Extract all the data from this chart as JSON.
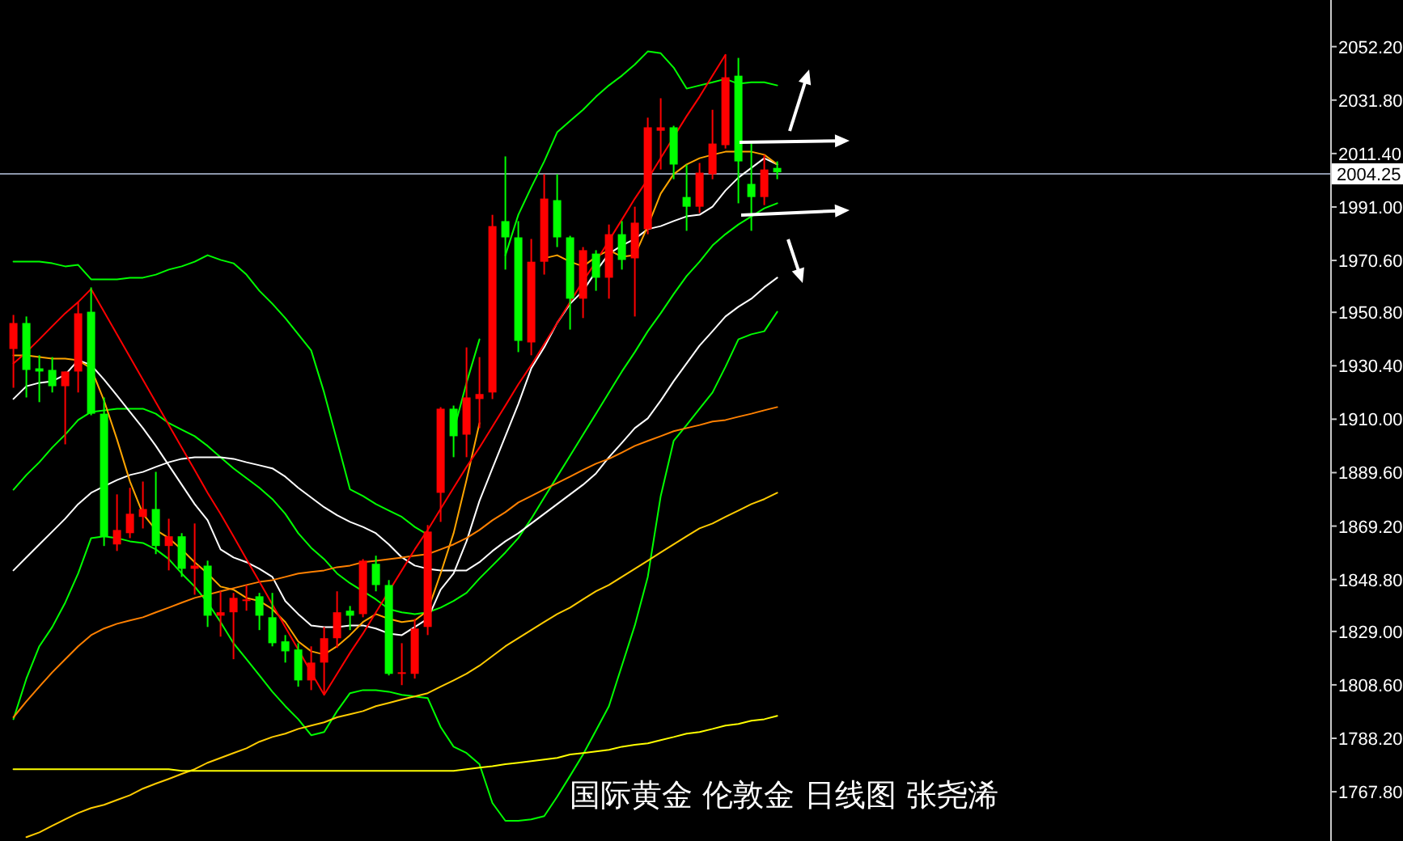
{
  "chart_data": {
    "type": "candlestick",
    "categories": [
      null,
      null,
      null,
      null,
      null,
      null,
      null,
      null,
      null,
      null,
      null,
      null,
      null,
      null,
      null,
      null,
      null,
      null,
      null,
      null,
      null,
      null,
      null,
      null,
      null,
      null,
      null,
      null,
      null,
      null,
      null,
      null,
      null,
      null,
      null,
      null,
      null,
      null,
      null,
      null,
      null,
      null,
      null,
      null,
      null,
      null,
      null,
      null,
      null,
      null,
      null,
      null,
      null,
      null,
      null,
      null,
      null,
      null,
      null,
      null
    ],
    "ohlc": [
      [
        1936.8,
        1949.8,
        1922.0,
        1946.7
      ],
      [
        1946.7,
        1949.2,
        1918.3,
        1928.8
      ],
      [
        1929.4,
        1934.4,
        1916.5,
        1928.2
      ],
      [
        1928.8,
        1933.7,
        1920.2,
        1922.6
      ],
      [
        1922.6,
        1928.2,
        1900.4,
        1928.2
      ],
      [
        1928.2,
        1954.7,
        1920.2,
        1950.4
      ],
      [
        1951.0,
        1960.3,
        1911.5,
        1912.1
      ],
      [
        1912.1,
        1918.3,
        1861.6,
        1865.3
      ],
      [
        1862.2,
        1881.3,
        1859.7,
        1867.7
      ],
      [
        1866.5,
        1883.8,
        1864.6,
        1873.9
      ],
      [
        1872.7,
        1886.2,
        1868.3,
        1875.7
      ],
      [
        1875.7,
        1889.9,
        1858.5,
        1861.6
      ],
      [
        1861.6,
        1872.0,
        1852.3,
        1865.3
      ],
      [
        1865.3,
        1866.5,
        1849.8,
        1852.9
      ],
      [
        1852.9,
        1870.2,
        1843.0,
        1854.1
      ],
      [
        1854.1,
        1856.0,
        1830.7,
        1835.0
      ],
      [
        1835.0,
        1844.3,
        1827.0,
        1836.3
      ],
      [
        1836.3,
        1843.7,
        1818.4,
        1841.8
      ],
      [
        1840.6,
        1846.7,
        1836.9,
        1841.2
      ],
      [
        1842.4,
        1843.7,
        1829.5,
        1835.0
      ],
      [
        1834.4,
        1843.7,
        1823.3,
        1824.5
      ],
      [
        1825.2,
        1827.6,
        1817.1,
        1821.4
      ],
      [
        1822.1,
        1824.5,
        1807.9,
        1810.3
      ],
      [
        1810.3,
        1823.3,
        1806.6,
        1817.1
      ],
      [
        1817.1,
        1830.7,
        1804.8,
        1826.4
      ],
      [
        1826.4,
        1844.3,
        1822.7,
        1836.3
      ],
      [
        1836.9,
        1838.7,
        1829.5,
        1835.0
      ],
      [
        1835.6,
        1856.6,
        1834.4,
        1856.0
      ],
      [
        1854.8,
        1857.9,
        1844.3,
        1846.7
      ],
      [
        1846.7,
        1848.6,
        1812.2,
        1812.8
      ],
      [
        1812.8,
        1824.5,
        1808.5,
        1813.4
      ],
      [
        1812.8,
        1833.8,
        1811.0,
        1830.1
      ],
      [
        1830.7,
        1869.6,
        1827.6,
        1867.1
      ],
      [
        1881.9,
        1914.6,
        1870.8,
        1914.0
      ],
      [
        1914.0,
        1915.2,
        1895.5,
        1903.5
      ],
      [
        1904.1,
        1937.4,
        1895.5,
        1918.3
      ],
      [
        1917.7,
        1933.7,
        1906.6,
        1919.6
      ],
      [
        1920.2,
        1988.0,
        1917.7,
        1983.7
      ],
      [
        1985.6,
        2010.3,
        1967.1,
        1979.4
      ],
      [
        1979.4,
        1985.6,
        1935.6,
        1939.9
      ],
      [
        1939.3,
        1978.8,
        1934.4,
        1970.1
      ],
      [
        1970.1,
        2003.5,
        1965.2,
        1994.2
      ],
      [
        1993.6,
        2003.5,
        1975.7,
        1979.4
      ],
      [
        1979.4,
        1980.0,
        1944.2,
        1956.0
      ],
      [
        1956.0,
        1975.7,
        1948.6,
        1974.5
      ],
      [
        1973.2,
        1974.5,
        1959.0,
        1964.0
      ],
      [
        1964.0,
        1984.3,
        1956.0,
        1980.6
      ],
      [
        1980.6,
        1985.6,
        1967.1,
        1970.8
      ],
      [
        1971.4,
        1991.1,
        1949.2,
        1985.0
      ],
      [
        1982.5,
        2025.1,
        1980.6,
        2021.4
      ],
      [
        2020.1,
        2032.5,
        2005.3,
        2021.4
      ],
      [
        2021.4,
        2022.0,
        2001.6,
        2007.2
      ],
      [
        1994.8,
        2007.2,
        1981.9,
        1991.1
      ],
      [
        1991.1,
        2007.8,
        1988.7,
        2004.1
      ],
      [
        2003.5,
        2028.1,
        2001.6,
        2015.2
      ],
      [
        2014.6,
        2049.1,
        2013.3,
        2040.5
      ],
      [
        2041.1,
        2047.9,
        1992.4,
        2008.4
      ],
      [
        1999.8,
        2015.2,
        1981.9,
        1994.8
      ],
      [
        1994.8,
        2010.9,
        1991.7,
        2005.3
      ],
      [
        2005.9,
        2008.4,
        2001.6,
        2004.25
      ]
    ],
    "colors": [
      "#ff0000",
      "#00ff00",
      "#00ff00",
      "#00ff00",
      "#ff0000",
      "#ff0000",
      "#00ff00",
      "#00ff00",
      "#ff0000",
      "#ff0000",
      "#ff0000",
      "#00ff00",
      "#ff0000",
      "#00ff00",
      "#ff0000",
      "#00ff00",
      "#ff0000",
      "#ff0000",
      "#ff0000",
      "#00ff00",
      "#00ff00",
      "#00ff00",
      "#00ff00",
      "#ff0000",
      "#ff0000",
      "#ff0000",
      "#00ff00",
      "#ff0000",
      "#00ff00",
      "#00ff00",
      "#ff0000",
      "#ff0000",
      "#ff0000",
      "#ff0000",
      "#00ff00",
      "#ff0000",
      "#ff0000",
      "#ff0000",
      "#00ff00",
      "#00ff00",
      "#ff0000",
      "#ff0000",
      "#00ff00",
      "#00ff00",
      "#ff0000",
      "#00ff00",
      "#ff0000",
      "#00ff00",
      "#ff0000",
      "#ff0000",
      "#ff0000",
      "#00ff00",
      "#00ff00",
      "#ff0000",
      "#ff0000",
      "#ff0000",
      "#00ff00",
      "#00ff00",
      "#ff0000",
      "#00ff00"
    ],
    "series": [
      {
        "type": "line",
        "color": "#00ff00",
        "values": [
          1970.1,
          1970.1,
          1970.1,
          1969.5,
          1968.3,
          1968.9,
          1963.4,
          1963.4,
          1963.4,
          1964.0,
          1964.0,
          1965.2,
          1967.1,
          1968.3,
          1970.1,
          1972.6,
          1970.8,
          1969.5,
          1965.2,
          1959.0,
          1954.1,
          1948.6,
          1942.4,
          1936.2,
          1920.2,
          1901.7,
          1883.2,
          1880.7,
          1877.6,
          1875.1,
          1872.7,
          1868.9,
          1865.9,
          null,
          1905.4,
          1923.9,
          1940.5,
          null,
          1972.6,
          1988.0,
          1998.5,
          2008.4,
          2019.5,
          2023.8,
          2028.1,
          2033.1,
          2037.4,
          2041.1,
          2045.4,
          2050.4,
          2049.7,
          2044.2,
          2036.2,
          2037.4,
          2038.6,
          2039.9,
          2038.0,
          2038.6,
          2038.6,
          2037.4
        ]
      },
      {
        "type": "line",
        "color": "#00ff00",
        "values": [
          1883.1,
          1888.7,
          1893.6,
          1899.2,
          1904.1,
          1909.7,
          1912.8,
          1913.4,
          1914.0,
          1914.0,
          1914.0,
          1912.1,
          1908.5,
          1906.0,
          1903.5,
          1899.8,
          1895.5,
          1891.2,
          1887.5,
          1883.8,
          1879.5,
          1873.9,
          1866.5,
          1860.9,
          1856.6,
          1851.1,
          1847.4,
          1844.3,
          1841.2,
          1837.5,
          1836.3,
          1835.6,
          1836.3,
          1838.1,
          1840.6,
          1843.7,
          1849.2,
          1854.1,
          1859.1,
          1864.6,
          1872.0,
          1880.1,
          1888.1,
          1896.1,
          1904.1,
          1912.1,
          1920.2,
          1928.2,
          1935.6,
          1943.6,
          1950.4,
          1957.8,
          1964.6,
          1970.1,
          1976.3,
          1980.6,
          1984.3,
          1987.4,
          1990.5,
          1992.4
        ]
      },
      {
        "type": "line",
        "color": "#00ff00",
        "values": [
          1795.5,
          1811.0,
          1823.3,
          1830.7,
          1840.0,
          1851.1,
          1864.6,
          1865.3,
          1864.6,
          1863.4,
          1862.8,
          1860.3,
          1856.6,
          1851.1,
          1846.1,
          1840.0,
          1832.6,
          1824.5,
          1818.4,
          1812.2,
          1806.0,
          1800.5,
          1795.5,
          1789.4,
          1790.6,
          1798.6,
          1805.4,
          1806.6,
          1806.6,
          1806.0,
          1804.8,
          1804.2,
          1803.6,
          1792.5,
          1785.0,
          1782.6,
          1778.3,
          1763.5,
          1756.7,
          1756.7,
          1757.3,
          1758.5,
          1765.9,
          1773.9,
          1782.0,
          1791.2,
          1800.5,
          1815.9,
          1831.3,
          1849.8,
          1880.7,
          1901.7,
          1907.8,
          1914.0,
          1920.2,
          1930.0,
          1940.5,
          1942.4,
          1943.6,
          1951.0
        ]
      },
      {
        "type": "line",
        "color": "#ffffff",
        "values": [
          1917.7,
          1922.6,
          1923.9,
          1924.5,
          1927.0,
          1932.5,
          1930.7,
          1925.1,
          1919.0,
          1912.8,
          1906.6,
          1899.8,
          1892.4,
          1885.0,
          1877.6,
          1871.4,
          1860.3,
          1857.2,
          1855.4,
          1852.9,
          1849.8,
          1840.6,
          1835.6,
          1831.3,
          1830.7,
          1830.7,
          1831.3,
          1831.3,
          1830.1,
          1828.2,
          1827.6,
          1830.7,
          1833.8,
          1844.9,
          1851.1,
          1863.4,
          1878.8,
          1891.2,
          1903.5,
          1915.8,
          1929.4,
          1937.4,
          1946.7,
          1954.1,
          1959.0,
          1966.4,
          1973.2,
          1976.3,
          1978.8,
          1982.5,
          1983.7,
          1985.6,
          1987.4,
          1988.0,
          1991.1,
          1997.3,
          2002.2,
          2005.9,
          2009.6,
          2007.2
        ]
      },
      {
        "type": "line",
        "color": "#ffffff",
        "values": [
          1852.3,
          1857.3,
          1862.2,
          1867.1,
          1872.0,
          1877.6,
          1881.9,
          1884.4,
          1886.8,
          1888.7,
          1889.9,
          1891.8,
          1893.6,
          1894.9,
          1895.5,
          1895.5,
          1895.5,
          1894.9,
          1893.6,
          1892.4,
          1891.2,
          1888.1,
          1883.8,
          1880.1,
          1876.4,
          1873.3,
          1870.8,
          1868.9,
          1866.5,
          1862.2,
          1857.3,
          1854.1,
          1852.9,
          1852.3,
          1852.3,
          1852.3,
          1855.4,
          1859.7,
          1863.4,
          1866.5,
          1870.2,
          1873.9,
          1877.6,
          1881.3,
          1885.0,
          1889.3,
          1895.5,
          1901.0,
          1906.6,
          1910.3,
          1917.1,
          1924.5,
          1931.3,
          1938.1,
          1943.6,
          1949.2,
          1952.9,
          1956.0,
          1960.3,
          1964.0
        ]
      },
      {
        "type": "line",
        "color": "#ffa500",
        "values": [
          1934.4,
          1934.4,
          1933.7,
          1933.1,
          1933.1,
          1932.5,
          1929.4,
          1917.1,
          1902.3,
          1886.2,
          1873.9,
          1867.7,
          1864.6,
          1860.3,
          1855.4,
          1851.1,
          1846.1,
          1844.9,
          1841.8,
          1840.6,
          1837.5,
          1832.6,
          1825.2,
          1821.4,
          1820.2,
          1823.3,
          1827.6,
          1832.6,
          1835.6,
          1833.8,
          1832.6,
          1833.2,
          1836.9,
          1851.1,
          1866.5,
          1886.8,
          1908.5,
          null,
          null,
          null,
          null,
          1971.4,
          1972.6,
          1970.1,
          1968.3,
          1972.0,
          1974.5,
          1972.0,
          1972.6,
          1983.7,
          1996.1,
          2003.5,
          2007.2,
          2009.6,
          2010.9,
          2012.1,
          2012.1,
          2012.1,
          2010.9,
          2007.2
        ]
      },
      {
        "type": "line",
        "color": "#ff8000",
        "values": [
          1796.2,
          1802.3,
          1807.9,
          1813.4,
          1818.4,
          1823.3,
          1827.6,
          1830.1,
          1831.9,
          1833.2,
          1834.4,
          1836.3,
          1838.1,
          1840.0,
          1841.8,
          1843.0,
          1844.3,
          1845.5,
          1846.7,
          1847.9,
          1848.6,
          1849.8,
          1851.1,
          1851.7,
          1852.3,
          1853.5,
          1854.1,
          1855.4,
          1856.0,
          1856.6,
          1857.2,
          1857.9,
          1858.5,
          1860.3,
          1862.2,
          1864.6,
          1867.7,
          1871.4,
          1874.5,
          1878.2,
          1880.7,
          1883.2,
          1885.6,
          1888.1,
          1890.6,
          1893.0,
          1894.9,
          1897.3,
          1899.8,
          1901.7,
          1903.5,
          1905.4,
          1906.6,
          1907.8,
          1909.1,
          1909.7,
          1910.9,
          1912.1,
          1913.4,
          1914.6
        ]
      },
      {
        "type": "line",
        "color": "#ffcc00",
        "values": [
          null,
          1750.5,
          1752.3,
          1754.8,
          1757.3,
          1759.7,
          1761.6,
          1762.8,
          1764.7,
          1766.5,
          1769.0,
          1770.9,
          1772.7,
          1774.6,
          1776.4,
          1778.9,
          1780.7,
          1782.6,
          1784.4,
          1786.9,
          1788.7,
          1790.0,
          1791.8,
          1793.1,
          1794.3,
          1796.2,
          1797.4,
          1798.6,
          1800.5,
          1801.7,
          1803.0,
          1804.2,
          1805.4,
          1807.9,
          1810.3,
          1812.8,
          1815.9,
          1819.6,
          1823.3,
          1826.4,
          1829.5,
          1832.6,
          1835.6,
          1838.1,
          1841.2,
          1844.3,
          1846.7,
          1849.8,
          1852.9,
          1856.0,
          1859.1,
          1862.2,
          1865.3,
          1868.3,
          1870.2,
          1872.7,
          1875.1,
          1877.6,
          1879.5,
          1881.9
        ]
      },
      {
        "type": "line",
        "color": "#ffff00",
        "values": [
          1776.4,
          1776.4,
          1776.4,
          1776.4,
          1776.4,
          1776.4,
          1776.4,
          1776.4,
          1776.4,
          1776.4,
          1776.4,
          1776.4,
          1776.4,
          1775.8,
          1775.8,
          1775.8,
          1775.8,
          1775.8,
          1775.8,
          1775.8,
          1775.8,
          1775.8,
          1775.8,
          1775.8,
          1775.8,
          1775.8,
          1775.8,
          1775.8,
          1775.8,
          1775.8,
          1775.8,
          1775.8,
          1775.8,
          1775.8,
          1775.8,
          1776.4,
          1777.0,
          1777.6,
          1778.3,
          1778.9,
          1779.5,
          1780.1,
          1780.7,
          1782.0,
          1782.6,
          1783.2,
          1783.8,
          1785.0,
          1785.7,
          1786.3,
          1787.5,
          1788.7,
          1790.0,
          1790.6,
          1791.8,
          1793.1,
          1793.7,
          1794.9,
          1795.5,
          1796.8
        ]
      },
      {
        "type": "line",
        "color": "#ff0000",
        "values": [
          1931.3,
          1935.6,
          1940.5,
          1945.5,
          1950.4,
          1954.7,
          1959.7,
          1951.0,
          1942.4,
          1933.7,
          1925.1,
          1916.5,
          1907.8,
          1899.2,
          1890.6,
          1881.9,
          1873.9,
          1865.3,
          1856.6,
          1848.0,
          1839.3,
          1830.7,
          1822.1,
          1813.4,
          1804.8,
          1812.8,
          1820.8,
          1828.2,
          1836.3,
          1844.3,
          1852.3,
          1860.3,
          1867.7,
          1875.8,
          1883.8,
          1891.8,
          1899.2,
          1907.2,
          1915.2,
          1923.3,
          1930.7,
          1938.7,
          1946.7,
          1954.7,
          1962.7,
          1970.1,
          1978.2,
          1986.2,
          1994.2,
          2001.6,
          2009.6,
          2017.7,
          2025.7,
          2033.1,
          2041.1,
          2049.1,
          null,
          null,
          null,
          null
        ]
      }
    ],
    "ylim": [
      1749,
      2070
    ],
    "yticks": [
      {
        "value": 2052.2,
        "label": "2052.20"
      },
      {
        "value": 2031.8,
        "label": "2031.80"
      },
      {
        "value": 2011.4,
        "label": "2011.40"
      },
      {
        "value": 1991,
        "label": "1991.00"
      },
      {
        "value": 1970.6,
        "label": "1970.60"
      },
      {
        "value": 1950.8,
        "label": "1950.80"
      },
      {
        "value": 1930.4,
        "label": "1930.40"
      },
      {
        "value": 1910,
        "label": "1910.00"
      },
      {
        "value": 1889.6,
        "label": "1889.60"
      },
      {
        "value": 1869.2,
        "label": "1869.20"
      },
      {
        "value": 1848.8,
        "label": "1848.80"
      },
      {
        "value": 1829,
        "label": "1829.00"
      },
      {
        "value": 1808.6,
        "label": "1808.60"
      },
      {
        "value": 1788.2,
        "label": "1788.20"
      },
      {
        "value": 1767.8,
        "label": "1767.80"
      }
    ],
    "ref_lines": [
      {
        "axis": "y",
        "value": 2004.25,
        "label": "2004.25",
        "color": "#8c96aa"
      }
    ],
    "annotations": [
      "国际黄金 伦敦金 日线图 张尧浠"
    ]
  }
}
